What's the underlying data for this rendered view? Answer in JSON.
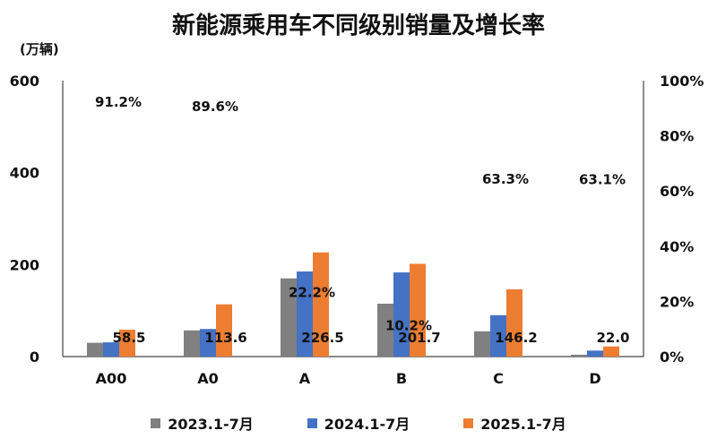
{
  "chart_data": {
    "type": "bar",
    "title": "新能源乘用车不同级别销量及增长率",
    "ylabel": "(万辆)",
    "categories": [
      "A00",
      "A0",
      "A",
      "B",
      "C",
      "D"
    ],
    "ylim": [
      0,
      600
    ],
    "y2lim": [
      0,
      100
    ],
    "left_ticks": [
      "0",
      "200",
      "400",
      "600"
    ],
    "right_ticks": [
      "0%",
      "20%",
      "40%",
      "60%",
      "80%",
      "100%"
    ],
    "series": [
      {
        "name": "2023.1-7月",
        "color": "#808080",
        "values": [
          30,
          57,
          170,
          115,
          55,
          4
        ]
      },
      {
        "name": "2024.1-7月",
        "color": "#4472C4",
        "values": [
          31,
          60,
          185,
          183,
          90,
          13
        ]
      },
      {
        "name": "2025.1-7月",
        "color": "#ED7D31",
        "values": [
          58.5,
          113.6,
          226.5,
          201.7,
          146.2,
          22.0
        ],
        "labels": [
          "58.5",
          "113.6",
          "226.5",
          "201.7",
          "146.2",
          "22.0"
        ]
      }
    ],
    "growth_rates": {
      "name": "增长率",
      "values": [
        91.2,
        89.6,
        22.2,
        10.2,
        63.3,
        63.1
      ],
      "labels": [
        "91.2%",
        "89.6%",
        "22.2%",
        "10.2%",
        "63.3%",
        "63.1%"
      ]
    },
    "legend_position": "bottom"
  }
}
